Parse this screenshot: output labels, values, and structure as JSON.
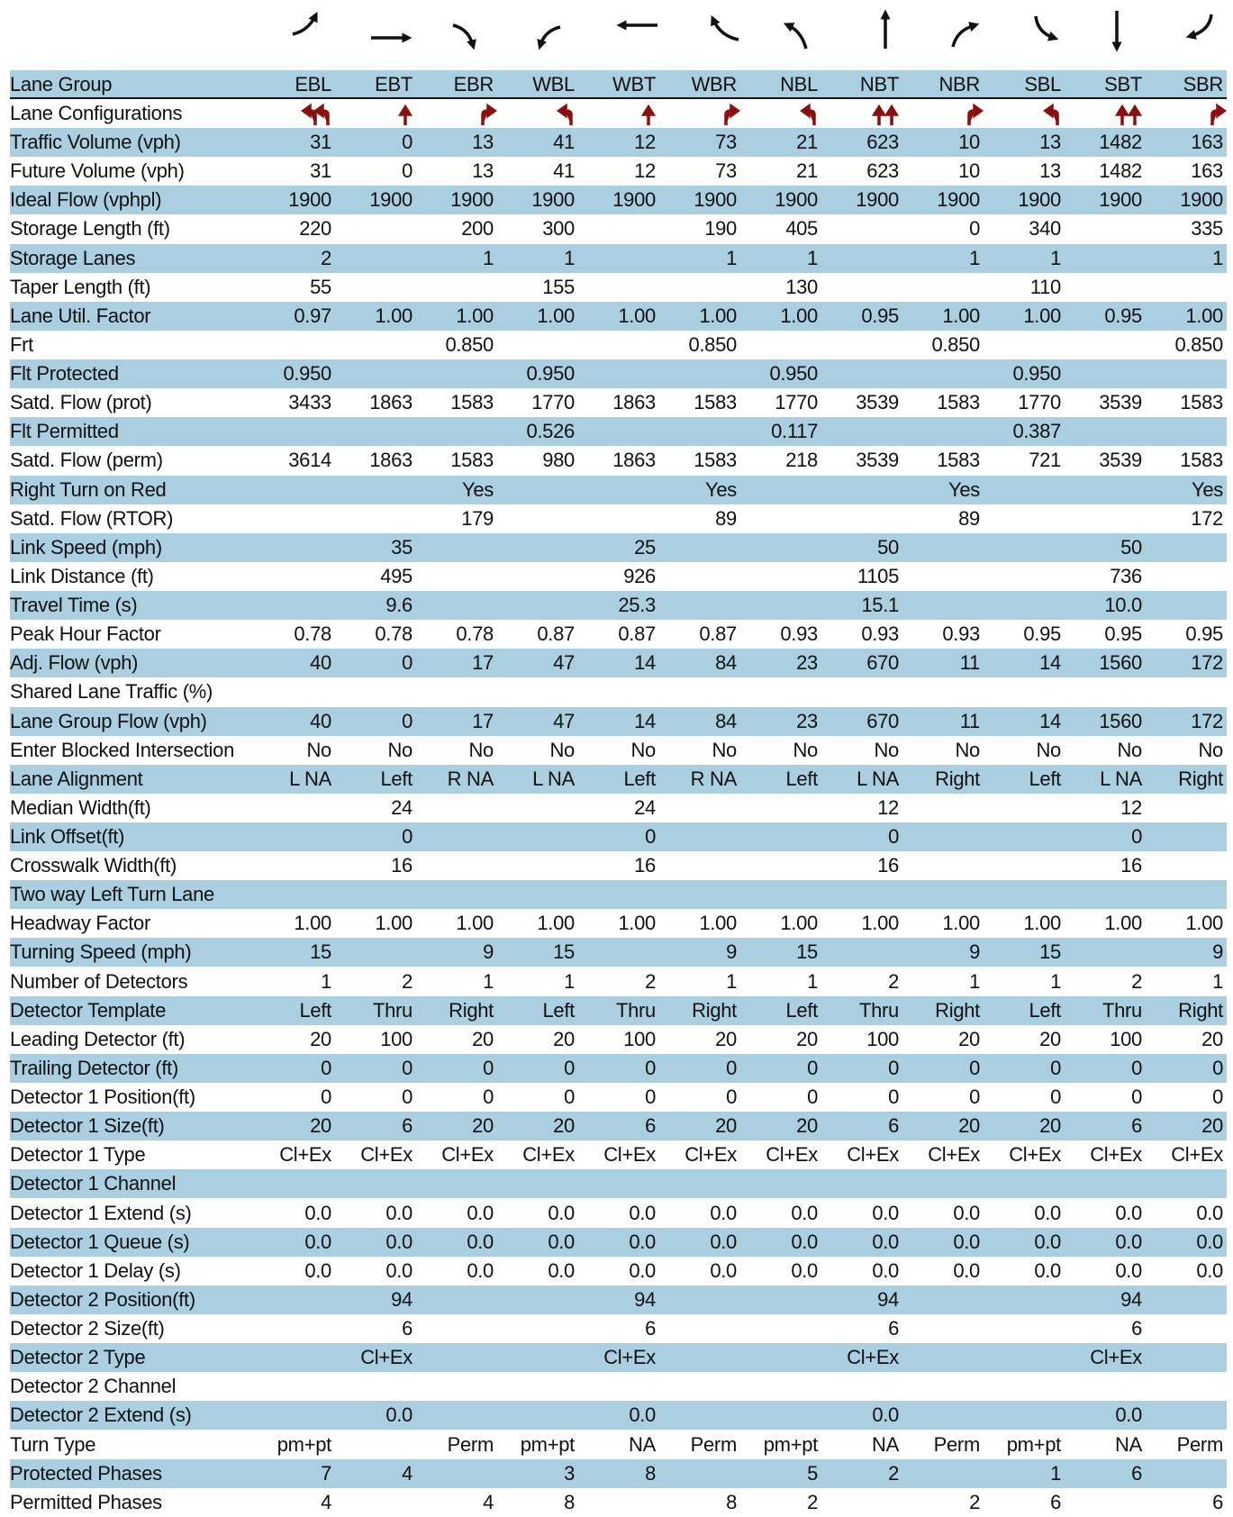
{
  "header": {
    "label": "Lane Group",
    "columns": [
      "EBL",
      "EBT",
      "EBR",
      "WBL",
      "WBT",
      "WBR",
      "NBL",
      "NBT",
      "NBR",
      "SBL",
      "SBT",
      "SBR"
    ]
  },
  "rows": [
    {
      "label": "Lane Configurations"
    },
    {
      "label": "Traffic Volume (vph)",
      "cells": [
        "31",
        "0",
        "13",
        "41",
        "12",
        "73",
        "21",
        "623",
        "10",
        "13",
        "1482",
        "163"
      ]
    },
    {
      "label": "Future Volume (vph)",
      "cells": [
        "31",
        "0",
        "13",
        "41",
        "12",
        "73",
        "21",
        "623",
        "10",
        "13",
        "1482",
        "163"
      ]
    },
    {
      "label": "Ideal Flow (vphpl)",
      "cells": [
        "1900",
        "1900",
        "1900",
        "1900",
        "1900",
        "1900",
        "1900",
        "1900",
        "1900",
        "1900",
        "1900",
        "1900"
      ]
    },
    {
      "label": "Storage Length (ft)",
      "cells": [
        "220",
        null,
        "200",
        "300",
        null,
        "190",
        "405",
        null,
        "0",
        "340",
        null,
        "335"
      ]
    },
    {
      "label": "Storage Lanes",
      "cells": [
        "2",
        null,
        "1",
        "1",
        null,
        "1",
        "1",
        null,
        "1",
        "1",
        null,
        "1"
      ]
    },
    {
      "label": "Taper Length (ft)",
      "cells": [
        "55",
        null,
        null,
        "155",
        null,
        null,
        "130",
        null,
        null,
        "110",
        null,
        null
      ]
    },
    {
      "label": "Lane Util. Factor",
      "cells": [
        "0.97",
        "1.00",
        "1.00",
        "1.00",
        "1.00",
        "1.00",
        "1.00",
        "0.95",
        "1.00",
        "1.00",
        "0.95",
        "1.00"
      ]
    },
    {
      "label": "Frt",
      "cells": [
        null,
        null,
        "0.850",
        null,
        null,
        "0.850",
        null,
        null,
        "0.850",
        null,
        null,
        "0.850"
      ]
    },
    {
      "label": "Flt Protected",
      "cells": [
        "0.950",
        null,
        null,
        "0.950",
        null,
        null,
        "0.950",
        null,
        null,
        "0.950",
        null,
        null
      ]
    },
    {
      "label": "Satd. Flow (prot)",
      "cells": [
        "3433",
        "1863",
        "1583",
        "1770",
        "1863",
        "1583",
        "1770",
        "3539",
        "1583",
        "1770",
        "3539",
        "1583"
      ]
    },
    {
      "label": "Flt Permitted",
      "cells": [
        null,
        null,
        null,
        "0.526",
        null,
        null,
        "0.117",
        null,
        null,
        "0.387",
        null,
        null
      ]
    },
    {
      "label": "Satd. Flow (perm)",
      "cells": [
        "3614",
        "1863",
        "1583",
        "980",
        "1863",
        "1583",
        "218",
        "3539",
        "1583",
        "721",
        "3539",
        "1583"
      ]
    },
    {
      "label": "Right Turn on Red",
      "cells": [
        null,
        null,
        "Yes",
        null,
        null,
        "Yes",
        null,
        null,
        "Yes",
        null,
        null,
        "Yes"
      ]
    },
    {
      "label": "Satd. Flow (RTOR)",
      "cells": [
        null,
        null,
        "179",
        null,
        null,
        "89",
        null,
        null,
        "89",
        null,
        null,
        "172"
      ]
    },
    {
      "label": "Link Speed (mph)",
      "cells": [
        null,
        "35",
        null,
        null,
        "25",
        null,
        null,
        "50",
        null,
        null,
        "50",
        null
      ]
    },
    {
      "label": "Link Distance (ft)",
      "cells": [
        null,
        "495",
        null,
        null,
        "926",
        null,
        null,
        "1105",
        null,
        null,
        "736",
        null
      ]
    },
    {
      "label": "Travel Time (s)",
      "cells": [
        null,
        "9.6",
        null,
        null,
        "25.3",
        null,
        null,
        "15.1",
        null,
        null,
        "10.0",
        null
      ]
    },
    {
      "label": "Peak Hour Factor",
      "cells": [
        "0.78",
        "0.78",
        "0.78",
        "0.87",
        "0.87",
        "0.87",
        "0.93",
        "0.93",
        "0.93",
        "0.95",
        "0.95",
        "0.95"
      ]
    },
    {
      "label": "Adj. Flow (vph)",
      "cells": [
        "40",
        "0",
        "17",
        "47",
        "14",
        "84",
        "23",
        "670",
        "11",
        "14",
        "1560",
        "172"
      ]
    },
    {
      "label": "Shared Lane Traffic (%)"
    },
    {
      "label": "Lane Group Flow (vph)",
      "cells": [
        "40",
        "0",
        "17",
        "47",
        "14",
        "84",
        "23",
        "670",
        "11",
        "14",
        "1560",
        "172"
      ]
    },
    {
      "label": "Enter Blocked Intersection",
      "cells": [
        "No",
        "No",
        "No",
        "No",
        "No",
        "No",
        "No",
        "No",
        "No",
        "No",
        "No",
        "No"
      ]
    },
    {
      "label": "Lane Alignment",
      "cells": [
        "L NA",
        "Left",
        "R NA",
        "L NA",
        "Left",
        "R NA",
        "Left",
        "L NA",
        "Right",
        "Left",
        "L NA",
        "Right"
      ]
    },
    {
      "label": "Median Width(ft)",
      "cells": [
        null,
        "24",
        null,
        null,
        "24",
        null,
        null,
        "12",
        null,
        null,
        "12",
        null
      ]
    },
    {
      "label": "Link Offset(ft)",
      "cells": [
        null,
        "0",
        null,
        null,
        "0",
        null,
        null,
        "0",
        null,
        null,
        "0",
        null
      ]
    },
    {
      "label": "Crosswalk Width(ft)",
      "cells": [
        null,
        "16",
        null,
        null,
        "16",
        null,
        null,
        "16",
        null,
        null,
        "16",
        null
      ]
    },
    {
      "label": "Two way Left Turn Lane"
    },
    {
      "label": "Headway Factor",
      "cells": [
        "1.00",
        "1.00",
        "1.00",
        "1.00",
        "1.00",
        "1.00",
        "1.00",
        "1.00",
        "1.00",
        "1.00",
        "1.00",
        "1.00"
      ]
    },
    {
      "label": "Turning Speed (mph)",
      "cells": [
        "15",
        null,
        "9",
        "15",
        null,
        "9",
        "15",
        null,
        "9",
        "15",
        null,
        "9"
      ]
    },
    {
      "label": "Number of Detectors",
      "cells": [
        "1",
        "2",
        "1",
        "1",
        "2",
        "1",
        "1",
        "2",
        "1",
        "1",
        "2",
        "1"
      ]
    },
    {
      "label": "Detector Template",
      "cells": [
        "Left",
        "Thru",
        "Right",
        "Left",
        "Thru",
        "Right",
        "Left",
        "Thru",
        "Right",
        "Left",
        "Thru",
        "Right"
      ]
    },
    {
      "label": "Leading Detector (ft)",
      "cells": [
        "20",
        "100",
        "20",
        "20",
        "100",
        "20",
        "20",
        "100",
        "20",
        "20",
        "100",
        "20"
      ]
    },
    {
      "label": "Trailing Detector (ft)",
      "cells": [
        "0",
        "0",
        "0",
        "0",
        "0",
        "0",
        "0",
        "0",
        "0",
        "0",
        "0",
        "0"
      ]
    },
    {
      "label": "Detector 1 Position(ft)",
      "cells": [
        "0",
        "0",
        "0",
        "0",
        "0",
        "0",
        "0",
        "0",
        "0",
        "0",
        "0",
        "0"
      ]
    },
    {
      "label": "Detector 1 Size(ft)",
      "cells": [
        "20",
        "6",
        "20",
        "20",
        "6",
        "20",
        "20",
        "6",
        "20",
        "20",
        "6",
        "20"
      ]
    },
    {
      "label": "Detector 1 Type",
      "cells": [
        "Cl+Ex",
        "Cl+Ex",
        "Cl+Ex",
        "Cl+Ex",
        "Cl+Ex",
        "Cl+Ex",
        "Cl+Ex",
        "Cl+Ex",
        "Cl+Ex",
        "Cl+Ex",
        "Cl+Ex",
        "Cl+Ex"
      ]
    },
    {
      "label": "Detector 1 Channel"
    },
    {
      "label": "Detector 1 Extend (s)",
      "cells": [
        "0.0",
        "0.0",
        "0.0",
        "0.0",
        "0.0",
        "0.0",
        "0.0",
        "0.0",
        "0.0",
        "0.0",
        "0.0",
        "0.0"
      ]
    },
    {
      "label": "Detector 1 Queue (s)",
      "cells": [
        "0.0",
        "0.0",
        "0.0",
        "0.0",
        "0.0",
        "0.0",
        "0.0",
        "0.0",
        "0.0",
        "0.0",
        "0.0",
        "0.0"
      ]
    },
    {
      "label": "Detector 1 Delay (s)",
      "cells": [
        "0.0",
        "0.0",
        "0.0",
        "0.0",
        "0.0",
        "0.0",
        "0.0",
        "0.0",
        "0.0",
        "0.0",
        "0.0",
        "0.0"
      ]
    },
    {
      "label": "Detector 2 Position(ft)",
      "cells": [
        null,
        "94",
        null,
        null,
        "94",
        null,
        null,
        "94",
        null,
        null,
        "94",
        null
      ]
    },
    {
      "label": "Detector 2 Size(ft)",
      "cells": [
        null,
        "6",
        null,
        null,
        "6",
        null,
        null,
        "6",
        null,
        null,
        "6",
        null
      ]
    },
    {
      "label": "Detector 2 Type",
      "cells": [
        null,
        "Cl+Ex",
        null,
        null,
        "Cl+Ex",
        null,
        null,
        "Cl+Ex",
        null,
        null,
        "Cl+Ex",
        null
      ]
    },
    {
      "label": "Detector 2 Channel"
    },
    {
      "label": "Detector 2 Extend (s)",
      "cells": [
        null,
        "0.0",
        null,
        null,
        "0.0",
        null,
        null,
        "0.0",
        null,
        null,
        "0.0",
        null
      ]
    },
    {
      "label": "Turn Type",
      "cells": [
        "pm+pt",
        null,
        "Perm",
        "pm+pt",
        "NA",
        "Perm",
        "pm+pt",
        "NA",
        "Perm",
        "pm+pt",
        "NA",
        "Perm"
      ]
    },
    {
      "label": "Protected Phases",
      "cells": [
        "7",
        "4",
        null,
        "3",
        "8",
        null,
        "5",
        "2",
        null,
        "1",
        "6",
        null
      ]
    },
    {
      "label": "Permitted Phases",
      "cells": [
        "4",
        null,
        "4",
        "8",
        null,
        "8",
        "2",
        null,
        "2",
        "6",
        null,
        "6"
      ]
    }
  ]
}
